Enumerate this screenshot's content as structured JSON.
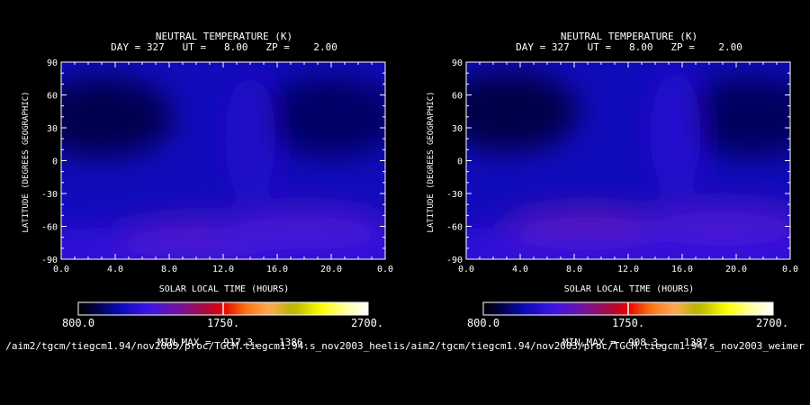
{
  "chart_data": [
    {
      "type": "heatmap",
      "title": "NEUTRAL TEMPERATURE (K)",
      "subtitle": "DAY = 327   UT =   8.00   ZP =    2.00",
      "xlabel": "SOLAR LOCAL TIME (HOURS)",
      "ylabel": "LATITUDE (DEGREES GEOGRAPHIC)",
      "x_ticks": [
        "0.0",
        "4.0",
        "8.0",
        "12.0",
        "16.0",
        "20.0",
        "0.0"
      ],
      "y_ticks": [
        "90",
        "60",
        "30",
        "0",
        "-30",
        "-60",
        "-90"
      ],
      "xlim": [
        0,
        24
      ],
      "ylim": [
        -90,
        90
      ],
      "colorbar": {
        "min_label": "800.0",
        "mid_label": "1750.",
        "max_label": "2700.",
        "range": [
          800,
          2700
        ]
      },
      "minmax_label": "MIN,MAX =",
      "min_value": "917.3,",
      "max_value": "1386.",
      "file_path": "/aim2/tgcm/tiegcm1.94/nov2003/proc/TGCM.tiegcm1.94.s_nov2003_heelis",
      "features": [
        {
          "type": "low",
          "lt": 3,
          "lat": 40,
          "value": 930
        },
        {
          "type": "low",
          "lt": 20,
          "lat": 40,
          "value": 960
        },
        {
          "type": "high",
          "lt": 10,
          "lat": -72,
          "value": 1380
        },
        {
          "type": "high",
          "lt": 18,
          "lat": -62,
          "value": 1320
        },
        {
          "type": "ridge",
          "lt": 14,
          "lat": 20,
          "value": 1150
        }
      ]
    },
    {
      "type": "heatmap",
      "title": "NEUTRAL TEMPERATURE (K)",
      "subtitle": "DAY = 327   UT =   8.00   ZP =    2.00",
      "xlabel": "SOLAR LOCAL TIME (HOURS)",
      "ylabel": "LATITUDE (DEGREES GEOGRAPHIC)",
      "x_ticks": [
        "0.0",
        "4.0",
        "8.0",
        "12.0",
        "16.0",
        "20.0",
        "0.0"
      ],
      "y_ticks": [
        "90",
        "60",
        "30",
        "0",
        "-30",
        "-60",
        "-90"
      ],
      "xlim": [
        0,
        24
      ],
      "ylim": [
        -90,
        90
      ],
      "colorbar": {
        "min_label": "800.0",
        "mid_label": "1750.",
        "max_label": "2700.",
        "range": [
          800,
          2700
        ]
      },
      "minmax_label": "MIN,MAX =",
      "min_value": "908.3,",
      "max_value": "1387.",
      "file_path": "/aim2/tgcm/tiegcm1.94/nov2003/proc/TGCM.tiegcm1.94.s_nov2003_weimer",
      "features": [
        {
          "type": "low",
          "lt": 3,
          "lat": 45,
          "value": 920
        },
        {
          "type": "low",
          "lt": 21,
          "lat": 40,
          "value": 950
        },
        {
          "type": "high",
          "lt": 9,
          "lat": -62,
          "value": 1385
        },
        {
          "type": "high",
          "lt": 19,
          "lat": -58,
          "value": 1330
        },
        {
          "type": "ridge",
          "lt": 15.5,
          "lat": 25,
          "value": 1180
        }
      ]
    }
  ]
}
